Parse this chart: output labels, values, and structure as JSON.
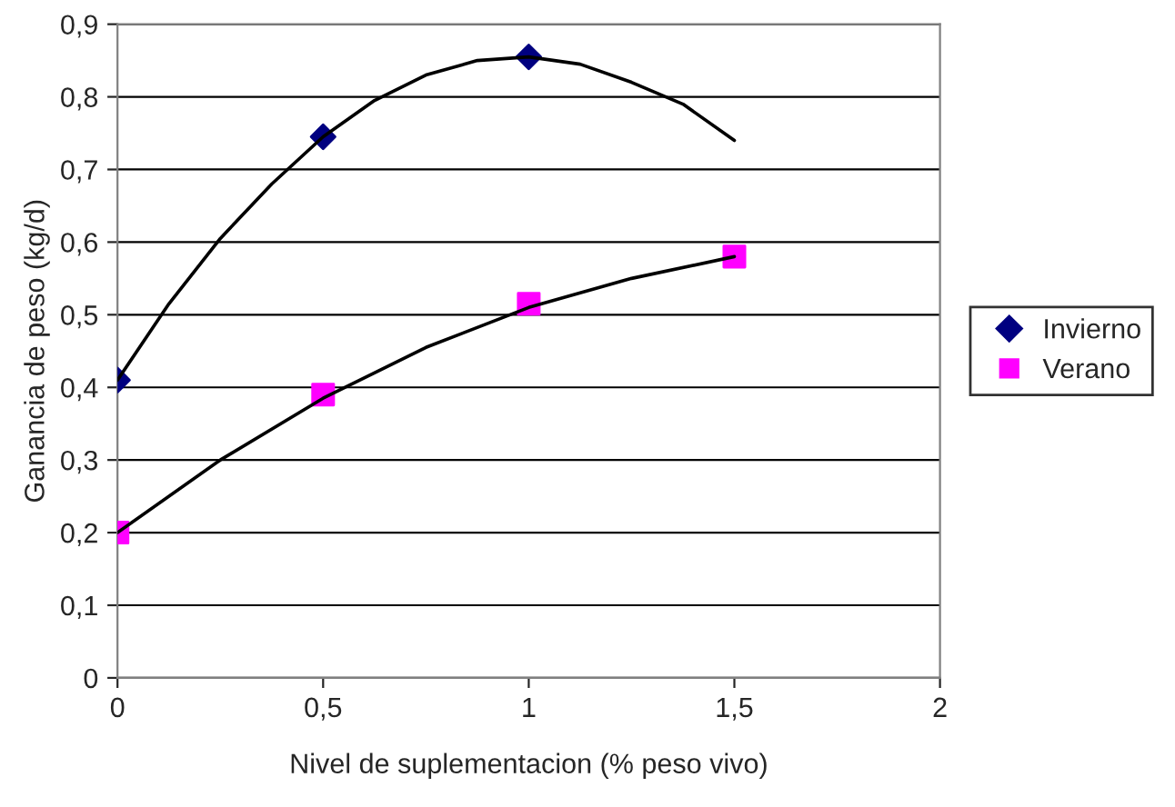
{
  "chart_data": {
    "type": "scatter",
    "xlabel": "Nivel de suplementacion (% peso vivo)",
    "ylabel": "Ganancia de peso (kg/d)",
    "xlim": [
      0,
      2
    ],
    "xticks": [
      0,
      {
        "value": 0.5,
        "label": "0,5"
      },
      1,
      {
        "value": 1.5,
        "label": "1,5"
      },
      2
    ],
    "ylim": [
      0,
      0.9
    ],
    "yticks": [
      0,
      {
        "value": 0.1,
        "label": "0,1"
      },
      {
        "value": 0.2,
        "label": "0,2"
      },
      {
        "value": 0.3,
        "label": "0,3"
      },
      {
        "value": 0.4,
        "label": "0,4"
      },
      {
        "value": 0.5,
        "label": "0,5"
      },
      {
        "value": 0.6,
        "label": "0,6"
      },
      {
        "value": 0.7,
        "label": "0,7"
      },
      {
        "value": 0.8,
        "label": "0,8"
      },
      {
        "value": 0.9,
        "label": "0,9"
      }
    ],
    "grid": "y",
    "legend": "right",
    "series": [
      {
        "type": "line",
        "color": "#000000",
        "line_style": "solid",
        "marker": "none",
        "x": [
          0,
          0.125,
          0.25,
          0.375,
          0.5,
          0.625,
          0.75,
          0.875,
          1,
          1.125,
          1.25,
          1.375,
          1.5
        ],
        "values": [
          0.41,
          0.515,
          0.605,
          0.68,
          0.745,
          0.795,
          0.83,
          0.85,
          0.855,
          0.845,
          0.82,
          0.79,
          0.74
        ]
      },
      {
        "type": "line",
        "color": "#000000",
        "line_style": "solid",
        "marker": "none",
        "x": [
          0,
          0.25,
          0.5,
          0.75,
          1,
          1.25,
          1.5
        ],
        "values": [
          0.2,
          0.3,
          0.385,
          0.455,
          0.51,
          0.55,
          0.58
        ]
      },
      {
        "name": "Invierno",
        "color": "#000080",
        "marker": "diamond",
        "x": [
          0,
          0.5,
          1
        ],
        "values": [
          0.41,
          0.745,
          0.855
        ]
      },
      {
        "name": "Verano",
        "color": "#ff00ff",
        "marker": "square",
        "x": [
          0,
          0.5,
          1,
          1.5
        ],
        "values": [
          0.2,
          0.39,
          0.515,
          0.58
        ]
      }
    ]
  }
}
